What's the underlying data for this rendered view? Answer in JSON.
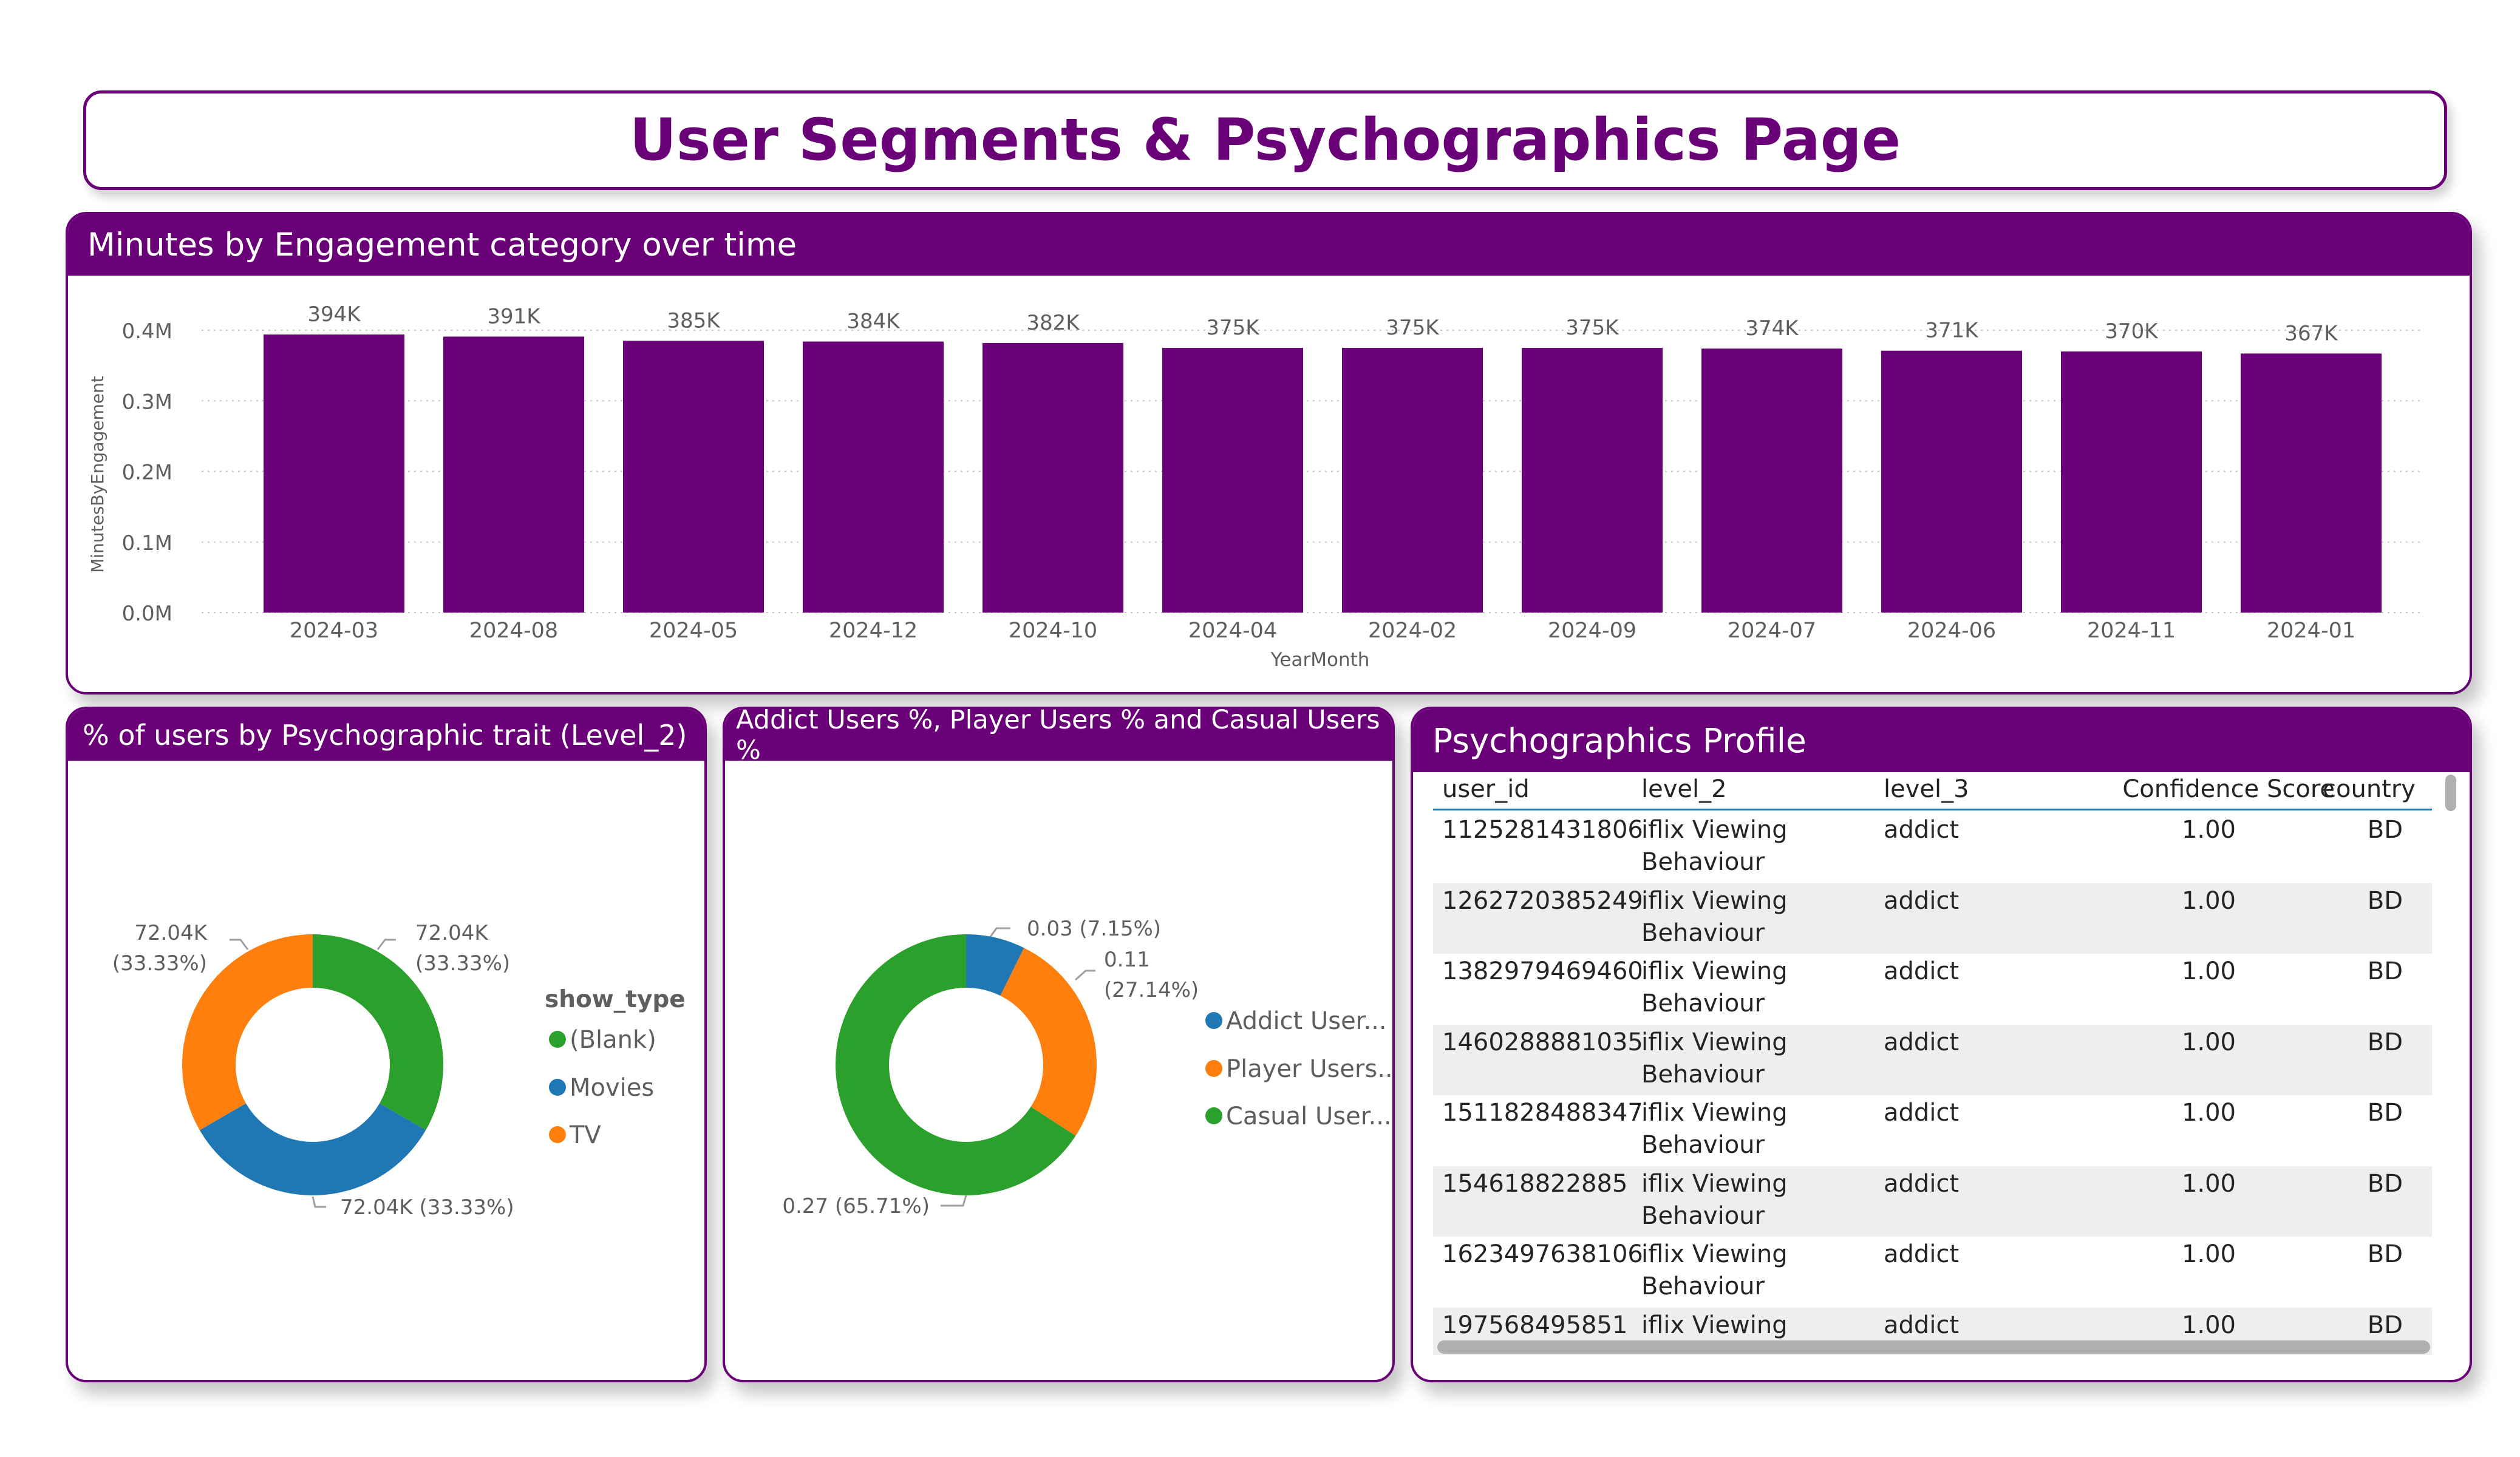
{
  "page": {
    "title": "User Segments & Psychographics Page"
  },
  "colors": {
    "purple": "#6a0078",
    "green": "#2ca02c",
    "blue": "#1f77b4",
    "orange": "#ff7f0e"
  },
  "bar_card": {
    "title": "Minutes by Engagement category over time"
  },
  "donut1_card": {
    "title": "% of users by Psychographic trait (Level_2)"
  },
  "donut2_card": {
    "title": "Addict Users %, Player Users % and Casual Users %"
  },
  "table_card": {
    "title": "Psychographics Profile",
    "columns": [
      "user_id",
      "level_2",
      "level_3",
      "Confidence Score",
      "country"
    ],
    "rows": [
      {
        "user_id": "1125281431806",
        "level_2_a": "iflix Viewing",
        "level_2_b": "Behaviour",
        "level_3": "addict",
        "score": "1.00",
        "country": "BD"
      },
      {
        "user_id": "1262720385249",
        "level_2_a": "iflix Viewing",
        "level_2_b": "Behaviour",
        "level_3": "addict",
        "score": "1.00",
        "country": "BD"
      },
      {
        "user_id": "1382979469460",
        "level_2_a": "iflix Viewing",
        "level_2_b": "Behaviour",
        "level_3": "addict",
        "score": "1.00",
        "country": "BD"
      },
      {
        "user_id": "1460288881035",
        "level_2_a": "iflix Viewing",
        "level_2_b": "Behaviour",
        "level_3": "addict",
        "score": "1.00",
        "country": "BD"
      },
      {
        "user_id": "1511828488347",
        "level_2_a": "iflix Viewing",
        "level_2_b": "Behaviour",
        "level_3": "addict",
        "score": "1.00",
        "country": "BD"
      },
      {
        "user_id": "154618822885",
        "level_2_a": "iflix Viewing",
        "level_2_b": "Behaviour",
        "level_3": "addict",
        "score": "1.00",
        "country": "BD"
      },
      {
        "user_id": "1623497638106",
        "level_2_a": "iflix Viewing",
        "level_2_b": "Behaviour",
        "level_3": "addict",
        "score": "1.00",
        "country": "BD"
      },
      {
        "user_id": "197568495851",
        "level_2_a": "iflix Viewing",
        "level_2_b": "",
        "level_3": "addict",
        "score": "1.00",
        "country": "BD"
      }
    ]
  },
  "chart_data": [
    {
      "type": "bar",
      "title": "Minutes by Engagement category over time",
      "xlabel": "YearMonth",
      "ylabel": "MinutesByEngagement",
      "categories": [
        "2024-03",
        "2024-08",
        "2024-05",
        "2024-12",
        "2024-10",
        "2024-04",
        "2024-02",
        "2024-09",
        "2024-07",
        "2024-06",
        "2024-11",
        "2024-01"
      ],
      "values": [
        394000,
        391000,
        385000,
        384000,
        382000,
        375000,
        375000,
        375000,
        374000,
        371000,
        370000,
        367000
      ],
      "data_labels": [
        "394K",
        "391K",
        "385K",
        "384K",
        "382K",
        "375K",
        "375K",
        "375K",
        "374K",
        "371K",
        "370K",
        "367K"
      ],
      "yticks": [
        "0.0M",
        "0.1M",
        "0.2M",
        "0.3M",
        "0.4M"
      ],
      "ylim": [
        0,
        400000
      ],
      "grid": true
    },
    {
      "type": "pie",
      "title": "% of users by Psychographic trait (Level_2)",
      "legend_title": "show_type",
      "legend_position": "right",
      "labels": [
        "(Blank)",
        "Movies",
        "TV"
      ],
      "values": [
        72040,
        72040,
        72040
      ],
      "colors": [
        "#2ca02c",
        "#1f77b4",
        "#ff7f0e"
      ],
      "data_labels": [
        {
          "line1": "72.04K",
          "line2": "(33.33%)"
        },
        {
          "line1": "72.04K (33.33%)",
          "line2": ""
        },
        {
          "line1": "72.04K",
          "line2": "(33.33%)"
        }
      ]
    },
    {
      "type": "pie",
      "title": "Addict Users %, Player Users % and Casual Users %",
      "legend_position": "right",
      "labels": [
        "Addict User...",
        "Player Users...",
        "Casual User..."
      ],
      "values": [
        0.03,
        0.11,
        0.27
      ],
      "percents": [
        7.15,
        27.14,
        65.71
      ],
      "colors": [
        "#1f77b4",
        "#ff7f0e",
        "#2ca02c"
      ],
      "data_labels": [
        {
          "line1": "0.03 (7.15%)",
          "line2": ""
        },
        {
          "line1": "0.11",
          "line2": "(27.14%)"
        },
        {
          "line1": "0.27 (65.71%)",
          "line2": ""
        }
      ]
    }
  ]
}
